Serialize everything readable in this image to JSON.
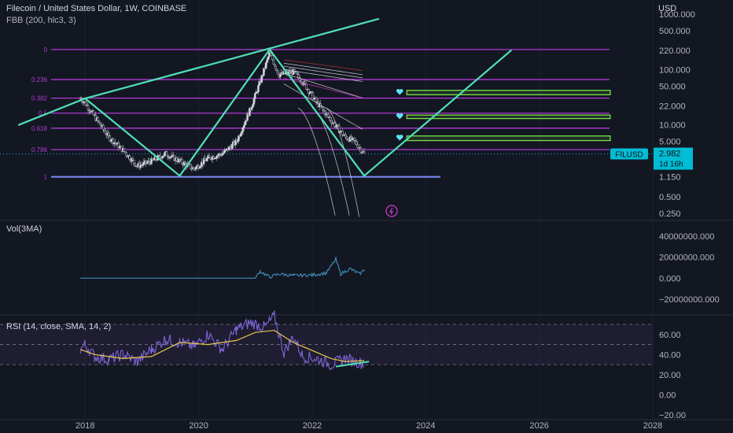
{
  "header": {
    "title": "Filecoin / United States Dollar, 1W, COINBASE",
    "indicator": "FBB (200, hlc3, 3)"
  },
  "price_pane": {
    "currency": "USD",
    "ticks": [
      "1000.000",
      "500.000",
      "220.000",
      "100.000",
      "50.000",
      "22.000",
      "10.000",
      "5.000",
      "2.000",
      "1.150",
      "0.500",
      "0.250"
    ],
    "fib_levels": [
      "0",
      "0.236",
      "0.382",
      "0.5",
      "0.618",
      "0.786",
      "1"
    ],
    "symbol_badge": "FILUSD",
    "last_price": "2.982",
    "countdown": "1d 16h"
  },
  "volume_pane": {
    "title": "Vol(3MA)",
    "ticks": [
      "40000000.000",
      "20000000.000",
      "0.000",
      "−20000000.000"
    ]
  },
  "rsi_pane": {
    "title": "RSI (14, close, SMA, 14, 2)",
    "ticks": [
      "60.00",
      "40.00",
      "20.00",
      "0.00",
      "−20.00"
    ]
  },
  "time_axis": {
    "ticks": [
      "2018",
      "2020",
      "2022",
      "2024",
      "2026",
      "2028"
    ]
  },
  "colors": {
    "background": "#131722",
    "fib_line": "#b13ad6",
    "trend_line": "#4fe0b4",
    "candle_up": "#c9ccd3",
    "candle_down": "#c9ccd3",
    "volume": "#3d8cb5",
    "rsi": "#8065d6",
    "rsi_ma": "#e8c84a",
    "target_box": "#7be24a",
    "badge": "#00bcd4"
  },
  "chart_data": [
    {
      "type": "candlestick",
      "title": "Filecoin / United States Dollar, 1W, COINBASE",
      "x_range": [
        "2016-06",
        "2028-01"
      ],
      "y_scale": "log",
      "ylim": [
        0.2,
        1300
      ],
      "price_path": {
        "dates": [
          "2017-12",
          "2018-01",
          "2018-03",
          "2018-06",
          "2018-09",
          "2018-12",
          "2019-03",
          "2019-06",
          "2019-09",
          "2019-12",
          "2020-03",
          "2020-06",
          "2020-09",
          "2020-12",
          "2021-02",
          "2021-04",
          "2021-06",
          "2021-09",
          "2021-11",
          "2022-02",
          "2022-05",
          "2022-08",
          "2022-10",
          "2022-12"
        ],
        "close": [
          30,
          25,
          14,
          6,
          3.5,
          1.8,
          2.2,
          3,
          2.2,
          1.6,
          2.5,
          3,
          5,
          20,
          60,
          200,
          80,
          90,
          60,
          25,
          12,
          6,
          5,
          3
        ]
      },
      "fibonacci": {
        "levels": [
          0,
          0.236,
          0.382,
          0.5,
          0.618,
          0.786,
          1
        ],
        "top_price": 230,
        "bottom_price": 1.15
      },
      "trend_lines": [
        {
          "from": [
            "2016-11",
            10
          ],
          "to": [
            "2018-01",
            30
          ]
        },
        {
          "from": [
            "2018-01",
            30
          ],
          "to": [
            "2023-03",
            820
          ]
        },
        {
          "from": [
            "2018-01",
            30
          ],
          "to": [
            "2019-09",
            1.2
          ]
        },
        {
          "from": [
            "2019-09",
            1.2
          ],
          "to": [
            "2021-04",
            230
          ]
        },
        {
          "from": [
            "2021-04",
            230
          ],
          "to": [
            "2022-12",
            1.2
          ]
        },
        {
          "from": [
            "2022-12",
            1.2
          ],
          "to": [
            "2025-07",
            220
          ]
        }
      ],
      "target_zones": [
        {
          "from": "2023-09",
          "to": "2027-04",
          "low": 35,
          "high": 42
        },
        {
          "from": "2023-09",
          "to": "2027-04",
          "low": 13,
          "high": 15
        },
        {
          "from": "2023-09",
          "to": "2027-04",
          "low": 5.2,
          "high": 6.3
        }
      ],
      "last_price": 2.982
    },
    {
      "type": "area",
      "title": "Vol(3MA)",
      "ylim": [
        -20000000,
        40000000
      ],
      "points": [
        [
          "2017-12",
          0
        ],
        [
          "2021-01",
          0
        ],
        [
          "2021-02",
          6500000
        ],
        [
          "2021-04",
          1000000
        ],
        [
          "2021-06",
          4000000
        ],
        [
          "2021-09",
          2500000
        ],
        [
          "2022-01",
          3000000
        ],
        [
          "2022-04",
          5000000
        ],
        [
          "2022-06",
          18000000
        ],
        [
          "2022-07",
          4000000
        ],
        [
          "2022-09",
          9000000
        ],
        [
          "2022-11",
          4000000
        ],
        [
          "2022-12",
          8000000
        ]
      ]
    },
    {
      "type": "line",
      "title": "RSI (14, close, SMA, 14, 2)",
      "ylim": [
        -20,
        70
      ],
      "bands": [
        30,
        50,
        70
      ],
      "series": [
        {
          "values": [
            [
              "2017-12",
              45
            ],
            [
              "2018-01",
              50
            ],
            [
              "2018-03",
              38
            ],
            [
              "2018-06",
              35
            ],
            [
              "2018-09",
              40
            ],
            [
              "2018-12",
              33
            ],
            [
              "2019-03",
              45
            ],
            [
              "2019-06",
              55
            ],
            [
              "2019-09",
              52
            ],
            [
              "2019-12",
              48
            ],
            [
              "2020-03",
              60
            ],
            [
              "2020-06",
              45
            ],
            [
              "2020-09",
              65
            ],
            [
              "2020-12",
              72
            ],
            [
              "2021-03",
              67
            ],
            [
              "2021-05",
              78
            ],
            [
              "2021-07",
              42
            ],
            [
              "2021-09",
              58
            ],
            [
              "2021-11",
              38
            ],
            [
              "2022-02",
              36
            ],
            [
              "2022-05",
              30
            ],
            [
              "2022-08",
              36
            ],
            [
              "2022-10",
              33
            ],
            [
              "2022-12",
              31
            ]
          ]
        },
        {
          "values": [
            [
              "2017-12",
              45
            ],
            [
              "2018-03",
              40
            ],
            [
              "2018-09",
              36
            ],
            [
              "2019-03",
              38
            ],
            [
              "2019-09",
              52
            ],
            [
              "2020-03",
              50
            ],
            [
              "2020-09",
              54
            ],
            [
              "2021-01",
              62
            ],
            [
              "2021-05",
              64
            ],
            [
              "2021-09",
              52
            ],
            [
              "2022-01",
              44
            ],
            [
              "2022-05",
              36
            ],
            [
              "2022-08",
              33
            ],
            [
              "2022-12",
              34
            ]
          ]
        }
      ],
      "divergence_line": {
        "from": [
          "2022-06",
          28
        ],
        "to": [
          "2023-01",
          33
        ]
      }
    }
  ]
}
